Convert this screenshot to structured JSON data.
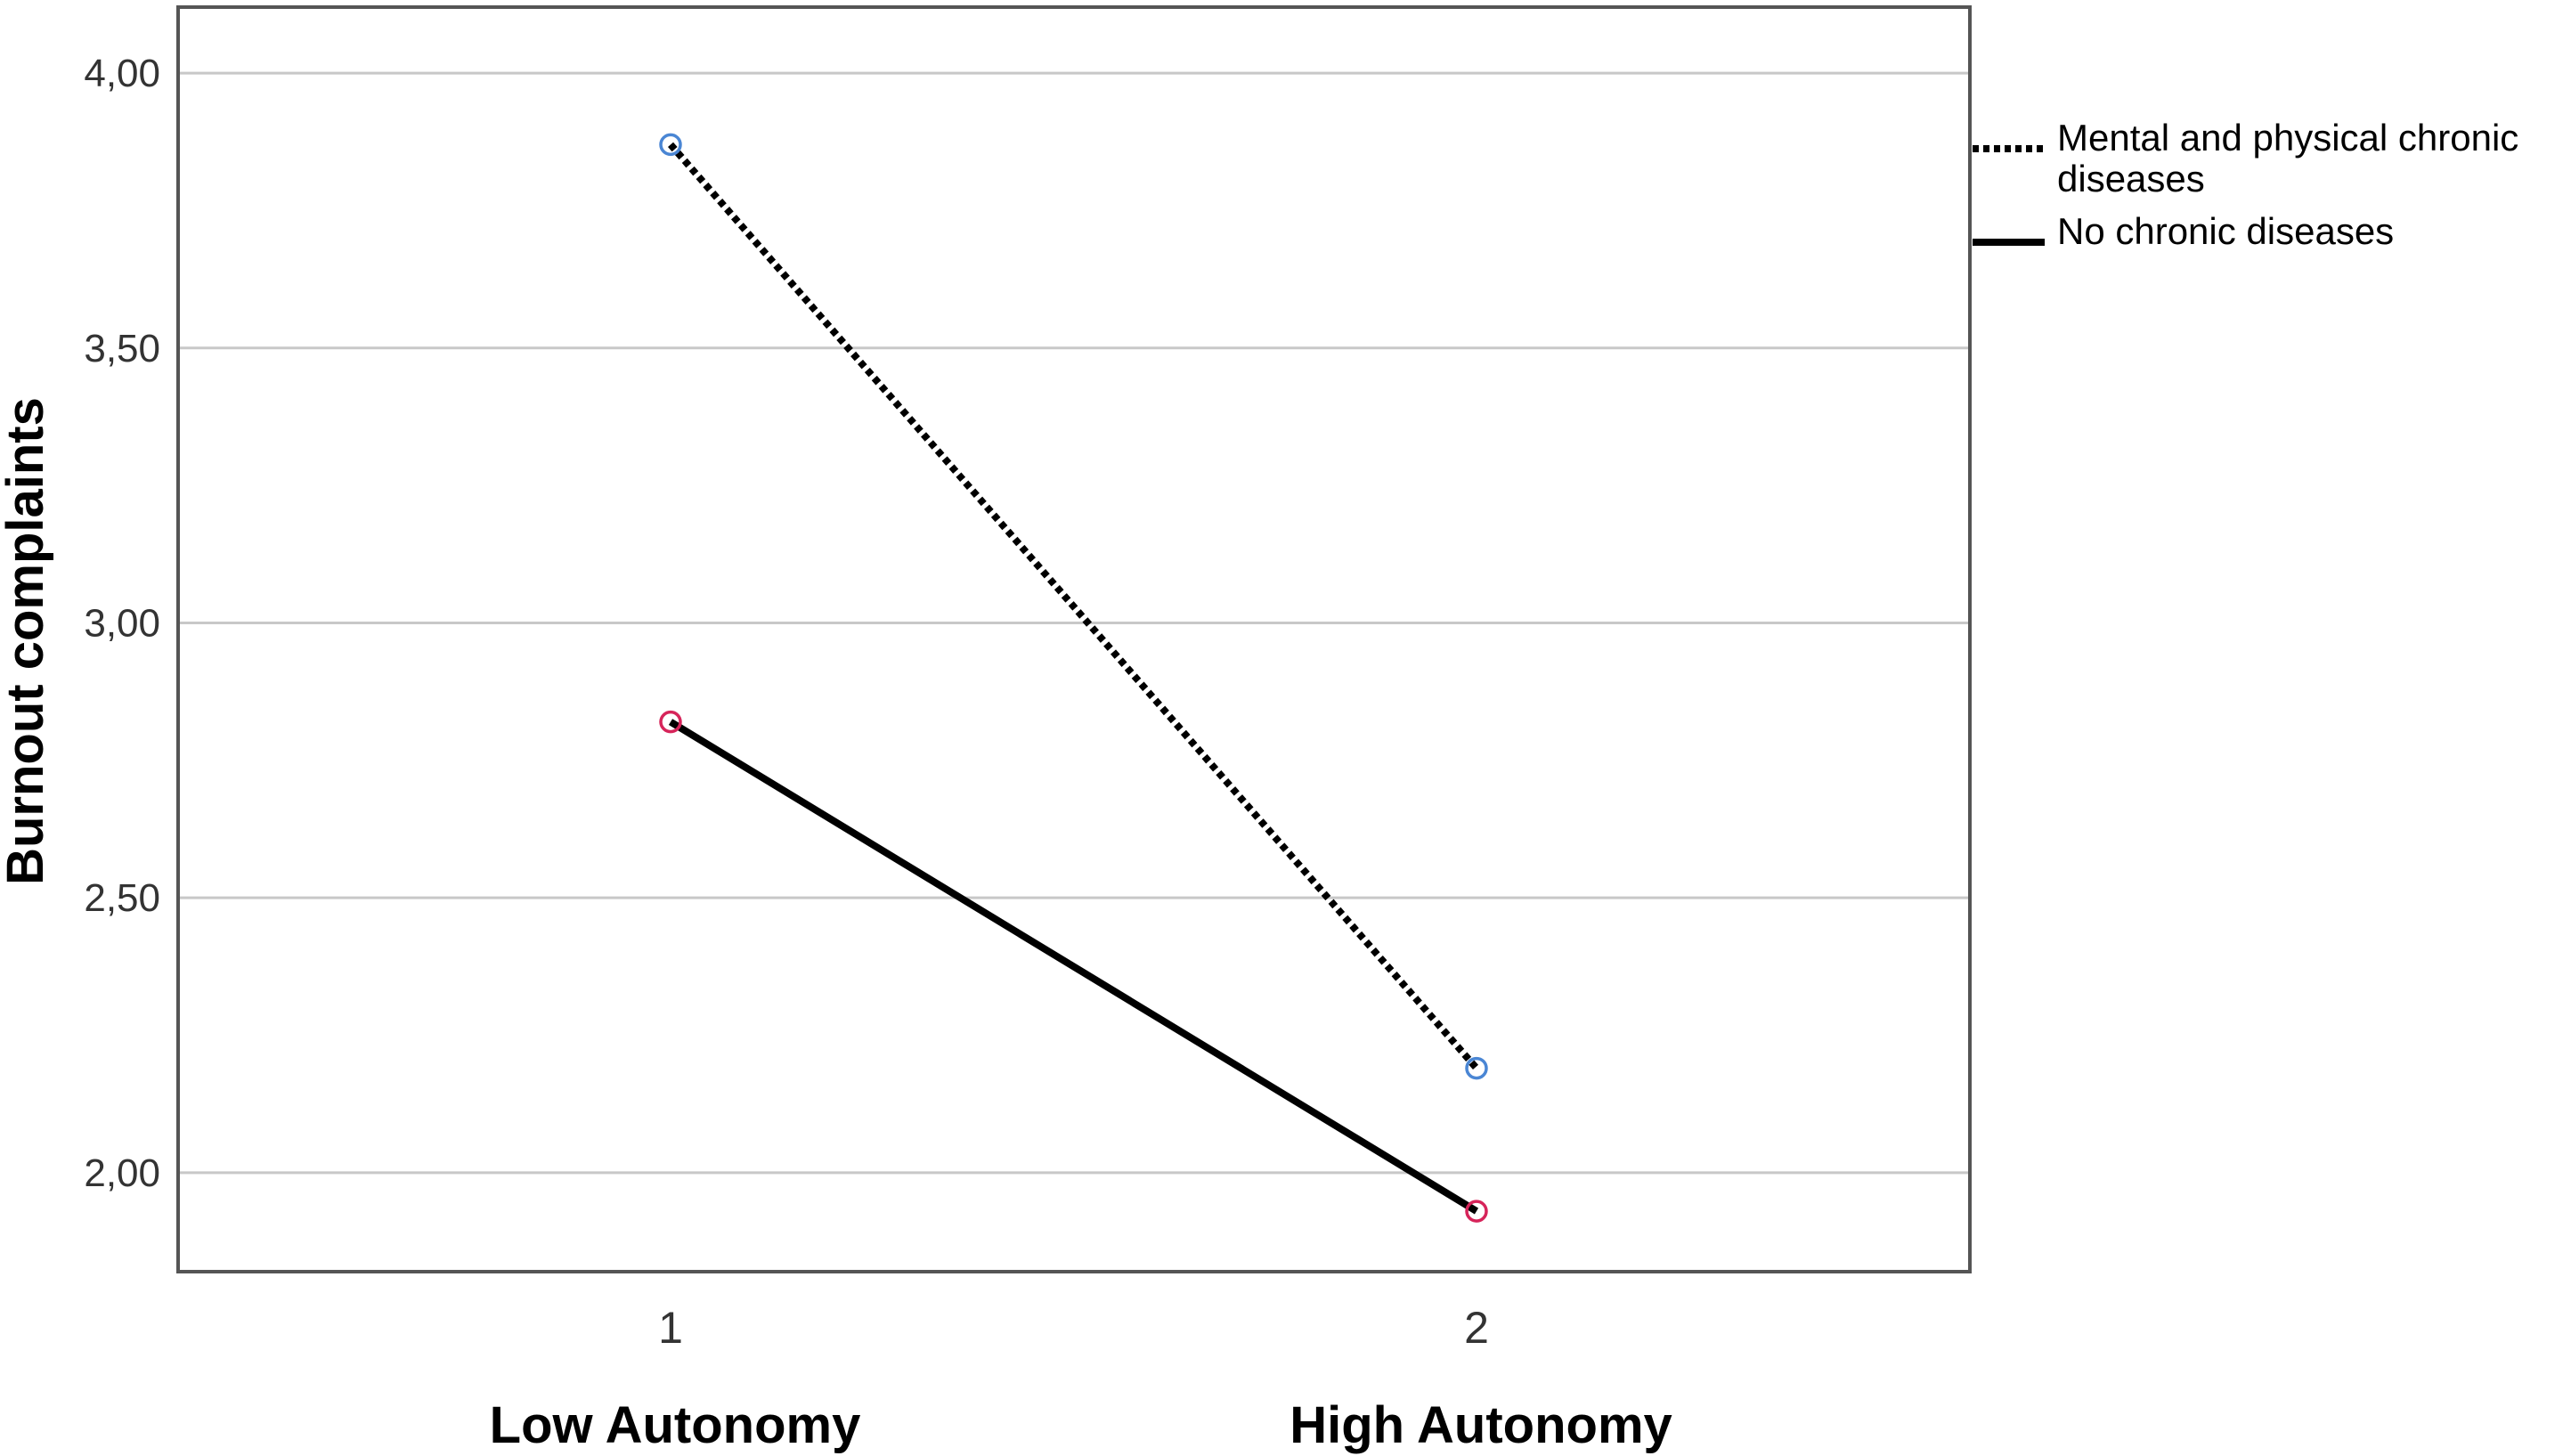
{
  "chart_data": {
    "type": "line",
    "title": "",
    "ylabel": "Burnout complaints",
    "xlabel": "",
    "x": [
      1,
      2
    ],
    "x_tick_labels": [
      "1",
      "2"
    ],
    "x_group_labels": [
      "Low Autonomy",
      "High Autonomy"
    ],
    "ylim": [
      1.82,
      4.12
    ],
    "y_ticks": [
      2.0,
      2.5,
      3.0,
      3.5,
      4.0
    ],
    "y_tick_labels": [
      "2,00",
      "2,50",
      "3,00",
      "3,50",
      "4,00"
    ],
    "grid": "horizontal",
    "legend_position": "top-right-outside",
    "series": [
      {
        "name": "Mental and physical chronic diseases",
        "name_lines": [
          "Mental and physical chronic",
          "diseases"
        ],
        "values": [
          3.87,
          2.19
        ],
        "line_style": "dotted",
        "marker_color": "#4a86d4"
      },
      {
        "name": "No chronic diseases",
        "name_lines": [
          "No chronic diseases"
        ],
        "values": [
          2.82,
          1.93
        ],
        "line_style": "solid",
        "marker_color": "#d6245a"
      }
    ]
  },
  "colors": {
    "line": "#000000",
    "grid": "#c8c8c8",
    "frame": "#555555"
  }
}
